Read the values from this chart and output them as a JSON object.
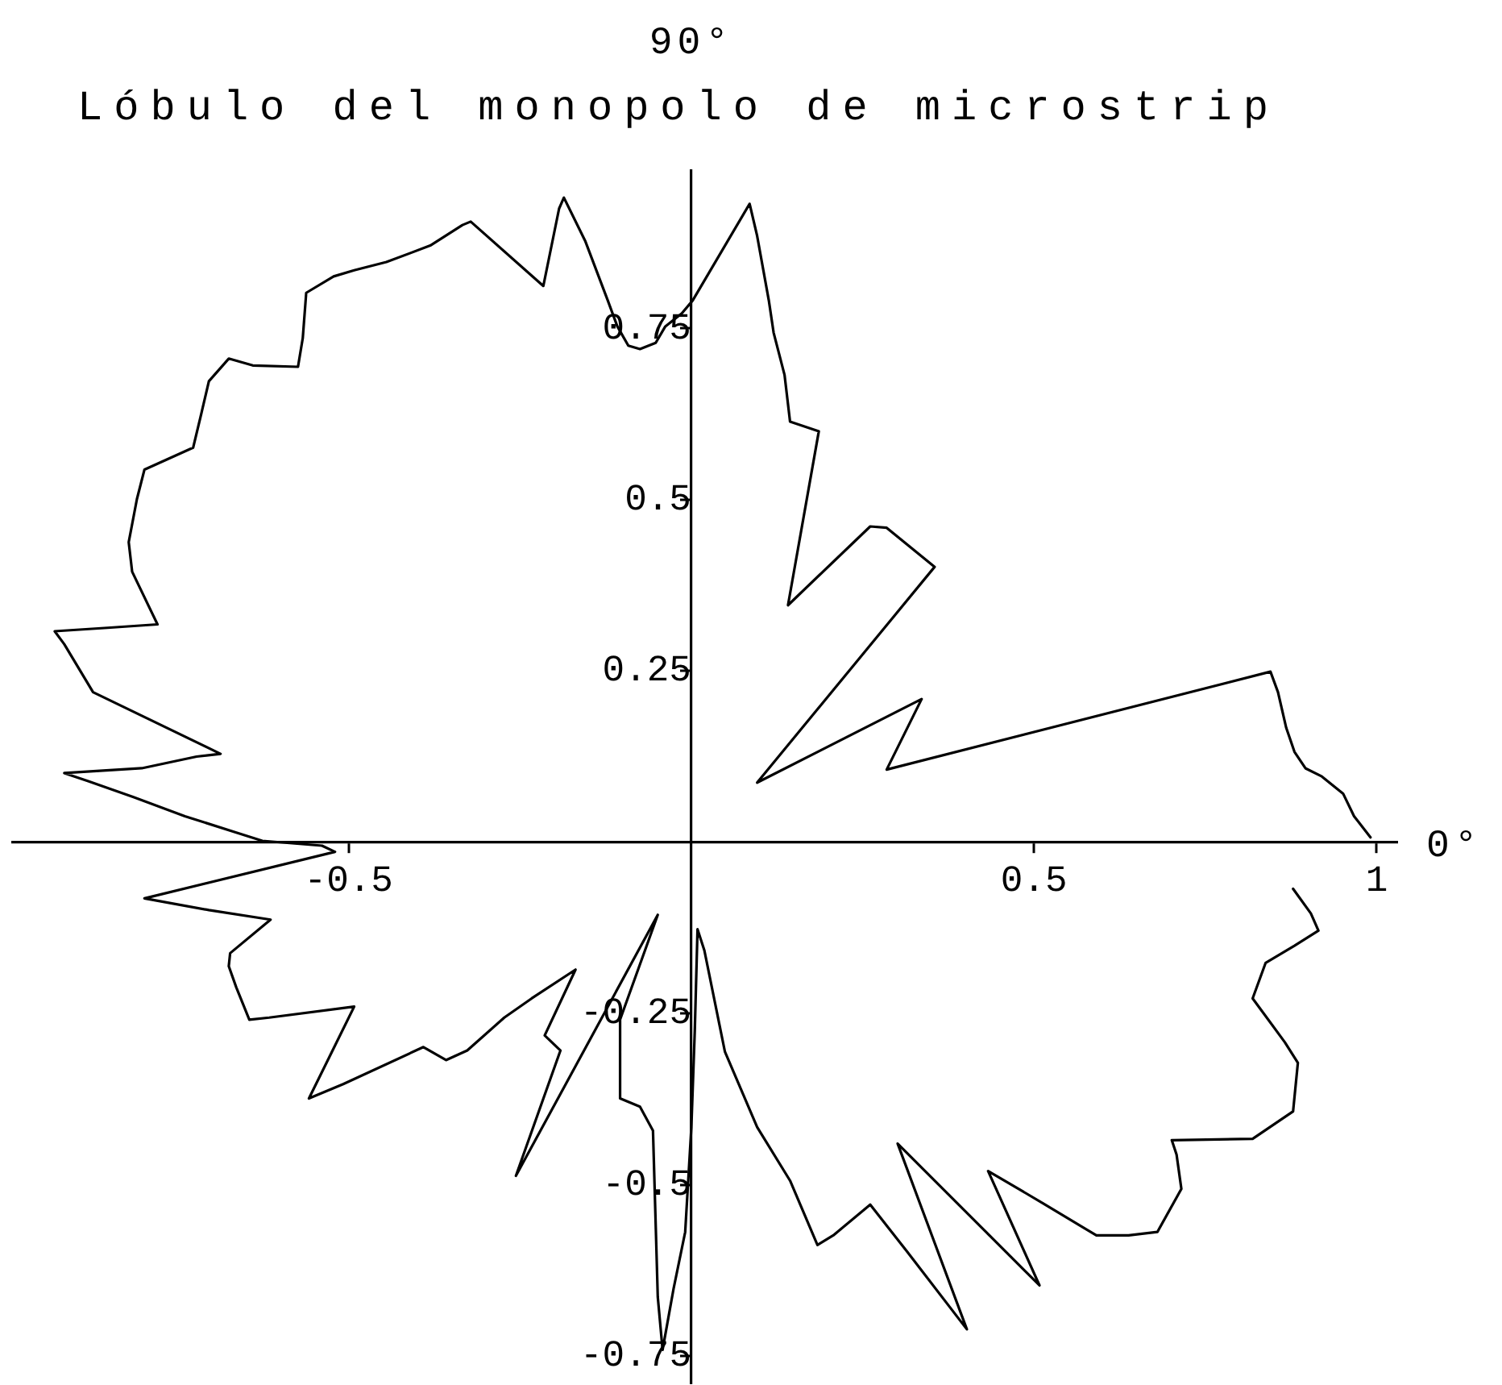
{
  "chart_data": {
    "type": "line",
    "title": "Lóbulo del monopolo de microstrip",
    "xlabel": "0°",
    "ylabel": "90°",
    "series": [
      {
        "color": "#000000",
        "x": [
          0.991,
          0.967,
          0.951,
          0.92,
          0.896,
          0.88,
          0.868,
          0.856,
          0.845,
          0.285,
          0.336,
          0.096,
          0.355,
          0.285,
          0.261,
          0.141,
          0.186,
          0.144,
          0.136,
          0.12,
          0.113,
          0.096,
          0.085,
          0.002,
          -0.014,
          -0.038,
          -0.052,
          -0.075,
          -0.092,
          -0.108,
          -0.122,
          -0.155,
          -0.186,
          -0.193,
          -0.216,
          -0.322,
          -0.334,
          -0.381,
          -0.445,
          -0.492,
          -0.522,
          -0.562,
          -0.567,
          -0.574,
          -0.64,
          -0.675,
          -0.704,
          -0.715,
          -0.727,
          -0.798,
          -0.809,
          -0.821,
          -0.816,
          -0.779,
          -0.852,
          -0.929,
          -0.915,
          -0.873,
          -0.687,
          -0.722,
          -0.802,
          -0.915,
          -0.88,
          -0.814,
          -0.739,
          -0.664,
          -0.626,
          -0.539,
          -0.52,
          -0.798,
          -0.704,
          -0.614,
          -0.673,
          -0.675,
          -0.664,
          -0.645,
          -0.616,
          -0.492,
          -0.558,
          -0.508,
          -0.391,
          -0.358,
          -0.327,
          -0.273,
          -0.233,
          -0.169,
          -0.214,
          -0.191,
          -0.256,
          -0.049,
          -0.104,
          -0.104,
          -0.075,
          -0.056,
          -0.049,
          -0.042,
          -0.026,
          -0.009,
          0,
          0.005,
          0.009,
          0.019,
          0.049,
          0.096,
          0.144,
          0.184,
          0.207,
          0.261,
          0.315,
          0.402,
          0.301,
          0.508,
          0.433,
          0.513,
          0.591,
          0.638,
          0.68,
          0.715,
          0.708,
          0.701,
          0.819,
          0.878,
          0.885,
          0.866,
          0.819,
          0.838,
          0.88,
          0.915,
          0.904,
          0.878
        ],
        "values": [
          0.007,
          0.038,
          0.071,
          0.096,
          0.108,
          0.132,
          0.167,
          0.219,
          0.249,
          0.106,
          0.209,
          0.087,
          0.402,
          0.459,
          0.461,
          0.346,
          0.6,
          0.614,
          0.682,
          0.744,
          0.791,
          0.885,
          0.932,
          0.791,
          0.772,
          0.753,
          0.729,
          0.72,
          0.725,
          0.753,
          0.791,
          0.878,
          0.941,
          0.925,
          0.812,
          0.906,
          0.901,
          0.871,
          0.847,
          0.835,
          0.826,
          0.802,
          0.736,
          0.694,
          0.696,
          0.706,
          0.673,
          0.626,
          0.576,
          0.544,
          0.501,
          0.438,
          0.395,
          0.318,
          0.313,
          0.308,
          0.289,
          0.219,
          0.129,
          0.125,
          0.108,
          0.101,
          0.089,
          0.066,
          0.038,
          0.014,
          0.002,
          -0.005,
          -0.014,
          -0.082,
          -0.099,
          -0.113,
          -0.162,
          -0.181,
          -0.212,
          -0.259,
          -0.256,
          -0.24,
          -0.374,
          -0.353,
          -0.299,
          -0.318,
          -0.304,
          -0.256,
          -0.228,
          -0.186,
          -0.282,
          -0.304,
          -0.487,
          -0.106,
          -0.259,
          -0.374,
          -0.386,
          -0.421,
          -0.664,
          -0.741,
          -0.652,
          -0.569,
          -0.416,
          -0.275,
          -0.127,
          -0.158,
          -0.306,
          -0.416,
          -0.494,
          -0.588,
          -0.574,
          -0.529,
          -0.598,
          -0.711,
          -0.44,
          -0.647,
          -0.48,
          -0.527,
          -0.574,
          -0.574,
          -0.569,
          -0.506,
          -0.456,
          -0.435,
          -0.433,
          -0.393,
          -0.322,
          -0.292,
          -0.228,
          -0.176,
          -0.151,
          -0.129,
          -0.104,
          -0.068
        ]
      }
    ],
    "xlim": [
      -0.99,
      1.03
    ],
    "ylim": [
      -0.79,
      0.98
    ],
    "xticks": [
      -0.5,
      0.5,
      1
    ],
    "yticks": [
      -0.75,
      -0.5,
      -0.25,
      0.25,
      0.5,
      0.75
    ],
    "marker": "none",
    "line_style": "solid"
  }
}
